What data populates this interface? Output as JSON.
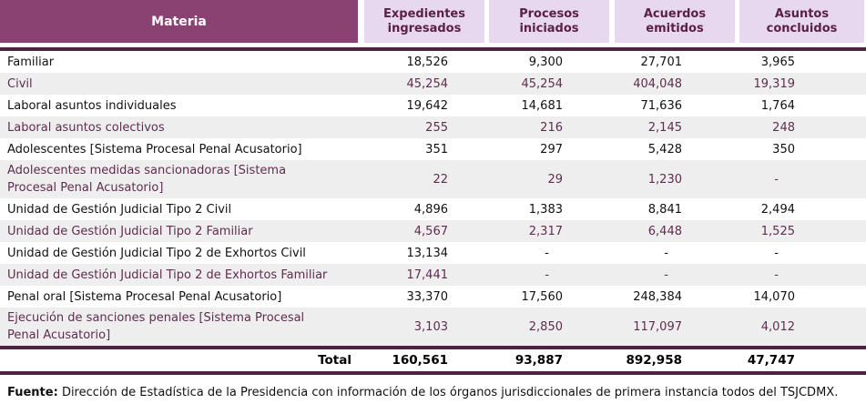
{
  "table": {
    "header": {
      "materia_label": "Materia",
      "columns": [
        "Expedientes ingresados",
        "Procesos iniciados",
        "Acuerdos emitidos",
        "Asuntos concluidos"
      ]
    },
    "rows": [
      {
        "materia": "Familiar",
        "values": [
          "18,526",
          "9,300",
          "27,701",
          "3,965"
        ]
      },
      {
        "materia": "Civil",
        "values": [
          "45,254",
          "45,254",
          "404,048",
          "19,319"
        ]
      },
      {
        "materia": "Laboral asuntos individuales",
        "values": [
          "19,642",
          "14,681",
          "71,636",
          "1,764"
        ]
      },
      {
        "materia": "Laboral asuntos colectivos",
        "values": [
          "255",
          "216",
          "2,145",
          "248"
        ]
      },
      {
        "materia": "Adolescentes [Sistema Procesal Penal Acusatorio]",
        "values": [
          "351",
          "297",
          "5,428",
          "350"
        ]
      },
      {
        "materia": "Adolescentes medidas sancionadoras [Sistema Procesal Penal Acusatorio]",
        "values": [
          "22",
          "29",
          "1,230",
          "-"
        ]
      },
      {
        "materia": "Unidad de Gestión Judicial Tipo 2 Civil",
        "values": [
          "4,896",
          "1,383",
          "8,841",
          "2,494"
        ]
      },
      {
        "materia": "Unidad de Gestión Judicial Tipo 2 Familiar",
        "values": [
          "4,567",
          "2,317",
          "6,448",
          "1,525"
        ]
      },
      {
        "materia": "Unidad de Gestión Judicial Tipo 2 de Exhortos Civil",
        "values": [
          "13,134",
          "-",
          "-",
          "-"
        ]
      },
      {
        "materia": "Unidad de Gestión Judicial Tipo 2 de Exhortos Familiar",
        "values": [
          "17,441",
          "-",
          "-",
          "-"
        ]
      },
      {
        "materia": "Penal oral [Sistema Procesal Penal Acusatorio]",
        "values": [
          "33,370",
          "17,560",
          "248,384",
          "14,070"
        ]
      },
      {
        "materia": "Ejecución de sanciones penales [Sistema Procesal Penal Acusatorio]",
        "values": [
          "3,103",
          "2,850",
          "117,097",
          "4,012"
        ]
      }
    ],
    "total": {
      "label": "Total",
      "values": [
        "160,561",
        "93,887",
        "892,958",
        "47,747"
      ]
    }
  },
  "footer": {
    "source_label": "Fuente:",
    "source_text": "Dirección de Estadística de la Presidencia con información de los órganos jurisdiccionales de primera instancia todos del TSJCDMX."
  },
  "colors": {
    "header_bg": "#8A4273",
    "header_text": "#FFFFFF",
    "column_header_bg": "#E7D8F0",
    "column_header_text": "#5A2145",
    "rule": "#4E2240",
    "alt_row_bg": "#EFEEEE",
    "alt_row_text": "#5E2D4F",
    "row_text": "#111111"
  }
}
